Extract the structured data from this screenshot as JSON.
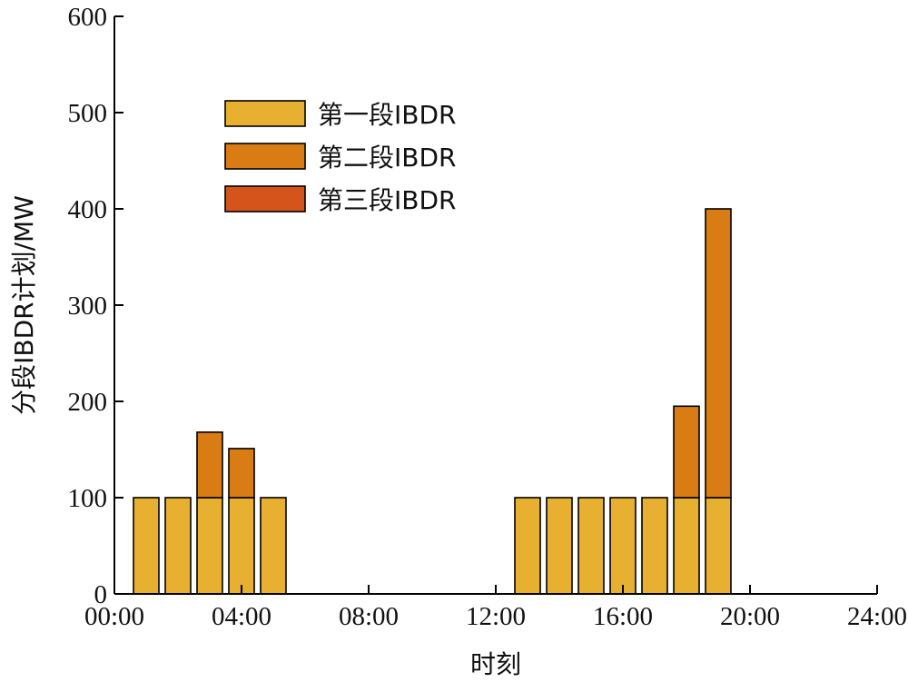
{
  "chart_data": {
    "type": "bar",
    "stacked": true,
    "x": [
      1,
      2,
      3,
      4,
      5,
      6,
      7,
      8,
      9,
      10,
      11,
      12,
      13,
      14,
      15,
      16,
      17,
      18,
      19
    ],
    "series": [
      {
        "name": "第一段IBDR",
        "color": "#E8B030",
        "values": [
          100,
          100,
          100,
          100,
          100,
          0,
          0,
          0,
          0,
          0,
          0,
          0,
          100,
          100,
          100,
          100,
          100,
          100,
          100
        ]
      },
      {
        "name": "第二段IBDR",
        "color": "#D97C14",
        "values": [
          0,
          0,
          68,
          51,
          0,
          0,
          0,
          0,
          0,
          0,
          0,
          0,
          0,
          0,
          0,
          0,
          0,
          95,
          300
        ]
      },
      {
        "name": "第三段IBDR",
        "color": "#D4541C",
        "values": [
          0,
          0,
          0,
          0,
          0,
          0,
          0,
          0,
          0,
          0,
          0,
          0,
          0,
          0,
          0,
          0,
          0,
          0,
          0
        ]
      }
    ],
    "xlabel": "时刻",
    "ylabel": "分段IBDR计划/MW",
    "xlim": [
      0,
      24
    ],
    "ylim": [
      0,
      600
    ],
    "xticks": [
      0,
      4,
      8,
      12,
      16,
      20,
      24
    ],
    "xtick_labels": [
      "00:00",
      "04:00",
      "08:00",
      "12:00",
      "16:00",
      "20:00",
      "24:00"
    ],
    "yticks": [
      0,
      100,
      200,
      300,
      400,
      500,
      600
    ],
    "ytick_labels": [
      "0",
      "100",
      "200",
      "300",
      "400",
      "500",
      "600"
    ],
    "grid": false,
    "legend_position": "top-left"
  }
}
